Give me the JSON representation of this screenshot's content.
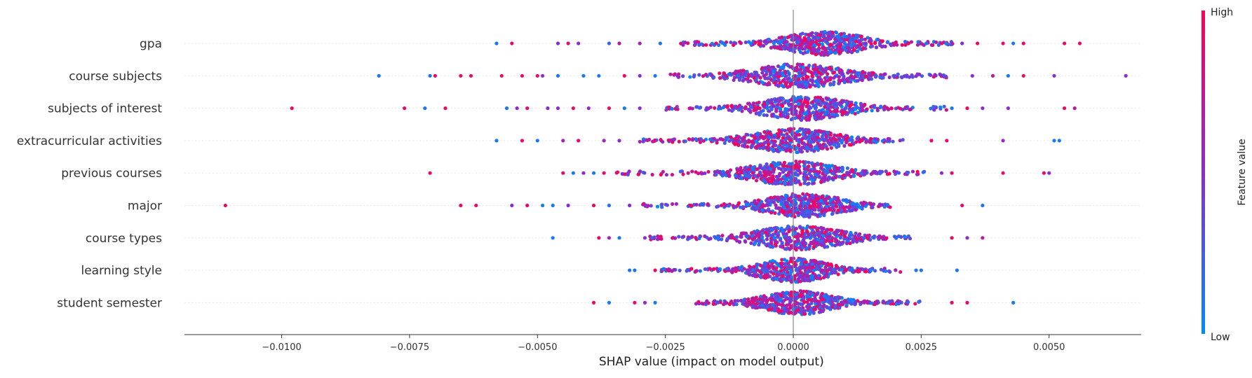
{
  "chart_data": {
    "type": "scatter",
    "title": "",
    "xlabel": "SHAP value (impact on model output)",
    "ylabel": "",
    "xlim": [
      -0.0119,
      0.0068
    ],
    "xticks": [
      -0.01,
      -0.0075,
      -0.005,
      -0.0025,
      0.0,
      0.0025,
      0.005
    ],
    "xtick_labels": [
      "−0.0100",
      "−0.0075",
      "−0.0050",
      "−0.0025",
      "0.0000",
      "0.0025",
      "0.0050"
    ],
    "grid": false,
    "zero_line": true,
    "colorbar": {
      "title": "Feature value",
      "high_label": "High",
      "low_label": "Low",
      "high_color": "#ff0052",
      "mid_color": "#8a2cd0",
      "low_color": "#008bfb"
    },
    "features": [
      {
        "name": "gpa",
        "range": [
          -0.0058,
          0.0056
        ],
        "core": [
          -0.0022,
          0.0032
        ],
        "peak": 0.0006,
        "spread": 0.0009,
        "outliers": [
          [
            -0.0058,
            0.1
          ],
          [
            -0.0055,
            0.9
          ],
          [
            -0.0046,
            0.5
          ],
          [
            -0.0044,
            0.9
          ],
          [
            -0.0042,
            0.5
          ],
          [
            -0.0036,
            0.2
          ],
          [
            -0.0034,
            0.7
          ],
          [
            -0.003,
            0.6
          ],
          [
            -0.0026,
            0.1
          ],
          [
            0.0026,
            0.1
          ],
          [
            0.0029,
            0.9
          ],
          [
            0.0033,
            0.5
          ],
          [
            0.0036,
            0.9
          ],
          [
            0.0041,
            0.9
          ],
          [
            0.0043,
            0.1
          ],
          [
            0.0045,
            0.9
          ],
          [
            0.0053,
            0.9
          ],
          [
            0.0056,
            0.9
          ]
        ]
      },
      {
        "name": "course subjects",
        "range": [
          -0.0081,
          0.0065
        ],
        "core": [
          -0.0024,
          0.003
        ],
        "peak": 0.0001,
        "spread": 0.0011,
        "outliers": [
          [
            -0.0081,
            0.1
          ],
          [
            -0.0071,
            0.1
          ],
          [
            -0.007,
            0.9
          ],
          [
            -0.0065,
            0.9
          ],
          [
            -0.0063,
            0.9
          ],
          [
            -0.0057,
            0.9
          ],
          [
            -0.0053,
            0.9
          ],
          [
            -0.005,
            0.9
          ],
          [
            -0.0049,
            0.5
          ],
          [
            -0.0046,
            0.1
          ],
          [
            -0.0041,
            0.1
          ],
          [
            -0.0038,
            0.1
          ],
          [
            -0.0033,
            0.9
          ],
          [
            -0.003,
            0.5
          ],
          [
            -0.0027,
            0.1
          ],
          [
            0.0035,
            0.5
          ],
          [
            0.0039,
            0.7
          ],
          [
            0.0042,
            0.1
          ],
          [
            0.0045,
            0.9
          ],
          [
            0.0051,
            0.5
          ],
          [
            0.0065,
            0.5
          ]
        ]
      },
      {
        "name": "subjects of interest",
        "range": [
          -0.0098,
          0.0055
        ],
        "core": [
          -0.0025,
          0.003
        ],
        "peak": 0.0002,
        "spread": 0.001,
        "outliers": [
          [
            -0.0098,
            0.9
          ],
          [
            -0.0076,
            0.9
          ],
          [
            -0.0072,
            0.1
          ],
          [
            -0.0068,
            0.9
          ],
          [
            -0.0056,
            0.1
          ],
          [
            -0.0054,
            0.5
          ],
          [
            -0.0052,
            0.9
          ],
          [
            -0.0048,
            0.5
          ],
          [
            -0.0046,
            0.5
          ],
          [
            -0.0043,
            0.9
          ],
          [
            -0.004,
            0.5
          ],
          [
            -0.0036,
            0.9
          ],
          [
            -0.0033,
            0.1
          ],
          [
            -0.003,
            0.5
          ],
          [
            0.0031,
            0.1
          ],
          [
            0.0034,
            0.9
          ],
          [
            0.0037,
            0.5
          ],
          [
            0.0042,
            0.5
          ],
          [
            0.0053,
            0.9
          ],
          [
            0.0055,
            0.7
          ]
        ]
      },
      {
        "name": "extracurricular activities",
        "range": [
          -0.0058,
          0.0052
        ],
        "core": [
          -0.003,
          0.0022
        ],
        "peak": 0.0,
        "spread": 0.001,
        "outliers": [
          [
            -0.0058,
            0.1
          ],
          [
            -0.0053,
            0.9
          ],
          [
            -0.005,
            0.1
          ],
          [
            -0.0045,
            0.6
          ],
          [
            -0.0042,
            0.9
          ],
          [
            -0.0037,
            0.6
          ],
          [
            -0.0034,
            0.5
          ],
          [
            0.0027,
            0.9
          ],
          [
            0.003,
            0.9
          ],
          [
            0.0041,
            0.5
          ],
          [
            0.0051,
            0.1
          ],
          [
            0.0052,
            0.1
          ]
        ]
      },
      {
        "name": "previous courses",
        "range": [
          -0.0071,
          0.005
        ],
        "core": [
          -0.0035,
          0.0026
        ],
        "peak": 0.0,
        "spread": 0.001,
        "outliers": [
          [
            -0.0071,
            0.9
          ],
          [
            -0.0045,
            0.9
          ],
          [
            -0.0043,
            0.1
          ],
          [
            -0.0041,
            0.5
          ],
          [
            -0.0039,
            0.1
          ],
          [
            -0.0037,
            0.9
          ],
          [
            0.0029,
            0.5
          ],
          [
            0.0031,
            0.9
          ],
          [
            0.0041,
            0.9
          ],
          [
            0.0049,
            0.9
          ],
          [
            0.005,
            0.5
          ]
        ]
      },
      {
        "name": "major",
        "range": [
          -0.0111,
          0.0037
        ],
        "core": [
          -0.003,
          0.0019
        ],
        "peak": 0.0002,
        "spread": 0.0009,
        "outliers": [
          [
            -0.0111,
            0.9
          ],
          [
            -0.0065,
            0.9
          ],
          [
            -0.0062,
            0.9
          ],
          [
            -0.0055,
            0.5
          ],
          [
            -0.0052,
            0.9
          ],
          [
            -0.0049,
            0.1
          ],
          [
            -0.0047,
            0.1
          ],
          [
            -0.0044,
            0.5
          ],
          [
            -0.0039,
            0.9
          ],
          [
            -0.0036,
            0.1
          ],
          [
            -0.0032,
            0.5
          ],
          [
            0.0033,
            0.9
          ],
          [
            0.0037,
            0.1
          ]
        ]
      },
      {
        "name": "course types",
        "range": [
          -0.0047,
          0.0037
        ],
        "core": [
          -0.0028,
          0.0023
        ],
        "peak": 0.0001,
        "spread": 0.001,
        "outliers": [
          [
            -0.0047,
            0.1
          ],
          [
            -0.0038,
            0.9
          ],
          [
            -0.0036,
            0.6
          ],
          [
            -0.0034,
            0.1
          ],
          [
            -0.0029,
            0.5
          ],
          [
            0.0031,
            0.9
          ],
          [
            0.0034,
            0.5
          ],
          [
            0.0037,
            0.7
          ]
        ]
      },
      {
        "name": "learning style",
        "range": [
          -0.0032,
          0.0032
        ],
        "core": [
          -0.0026,
          0.0021
        ],
        "peak": 0.0,
        "spread": 0.0008,
        "outliers": [
          [
            -0.0032,
            0.1
          ],
          [
            -0.0031,
            0.1
          ],
          [
            -0.0027,
            0.9
          ],
          [
            0.0024,
            0.1
          ],
          [
            0.0025,
            0.1
          ],
          [
            0.0032,
            0.1
          ]
        ]
      },
      {
        "name": "student semester",
        "range": [
          -0.0039,
          0.0043
        ],
        "core": [
          -0.0019,
          0.0025
        ],
        "peak": 0.0001,
        "spread": 0.0008,
        "outliers": [
          [
            -0.0039,
            0.9
          ],
          [
            -0.0036,
            0.1
          ],
          [
            -0.0031,
            0.9
          ],
          [
            -0.0029,
            0.5
          ],
          [
            -0.0027,
            0.1
          ],
          [
            0.0031,
            0.9
          ],
          [
            0.0034,
            0.9
          ],
          [
            0.0043,
            0.1
          ]
        ]
      }
    ]
  }
}
